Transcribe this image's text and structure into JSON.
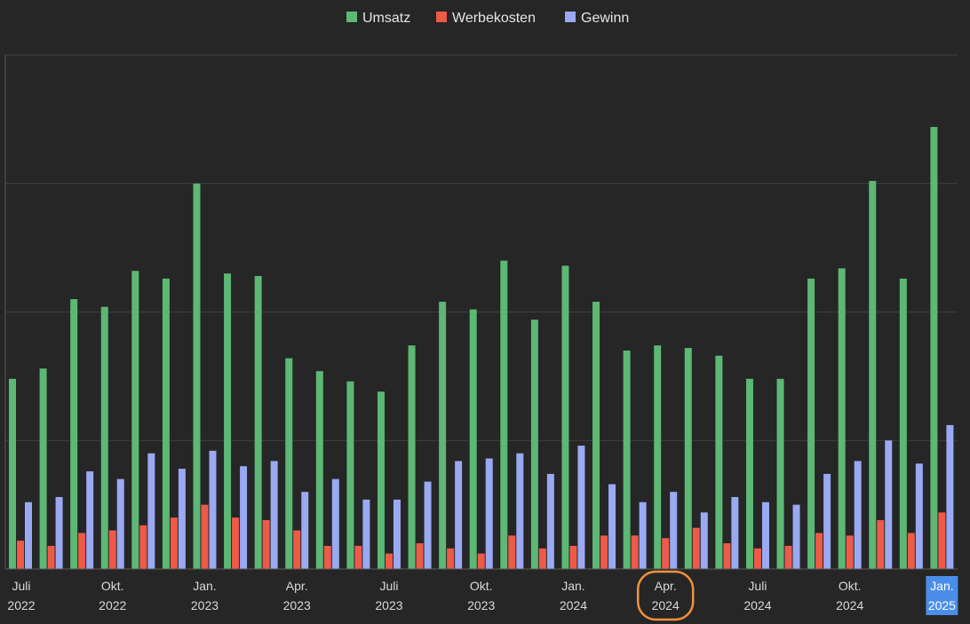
{
  "chart_data": {
    "type": "bar",
    "title": "",
    "xlabel": "",
    "ylabel": "",
    "ylim": [
      0,
      200
    ],
    "grid": true,
    "legend_position": "top-center",
    "categories": [
      "2022-07",
      "2022-08",
      "2022-09",
      "2022-10",
      "2022-11",
      "2022-12",
      "2023-01",
      "2023-02",
      "2023-03",
      "2023-04",
      "2023-05",
      "2023-06",
      "2023-07",
      "2023-08",
      "2023-09",
      "2023-10",
      "2023-11",
      "2023-12",
      "2024-01",
      "2024-02",
      "2024-03",
      "2024-04",
      "2024-05",
      "2024-06",
      "2024-07",
      "2024-08",
      "2024-09",
      "2024-10",
      "2024-11",
      "2024-12",
      "2025-01"
    ],
    "series": [
      {
        "name": "Umsatz",
        "color": "#5cb874",
        "values": [
          74,
          78,
          105,
          102,
          116,
          113,
          150,
          115,
          114,
          82,
          77,
          73,
          69,
          87,
          104,
          101,
          120,
          97,
          118,
          104,
          85,
          87,
          86,
          83,
          74,
          74,
          113,
          117,
          151,
          113,
          172
        ]
      },
      {
        "name": "Werbekosten",
        "color": "#ee5a48",
        "values": [
          11,
          9,
          14,
          15,
          17,
          20,
          25,
          20,
          19,
          15,
          9,
          9,
          6,
          10,
          8,
          6,
          13,
          8,
          9,
          13,
          13,
          12,
          16,
          10,
          8,
          9,
          14,
          13,
          19,
          14,
          22
        ]
      },
      {
        "name": "Gewinn",
        "color": "#9aa9f2",
        "values": [
          26,
          28,
          38,
          35,
          45,
          39,
          46,
          40,
          42,
          30,
          35,
          27,
          27,
          34,
          42,
          43,
          45,
          37,
          48,
          33,
          26,
          30,
          22,
          28,
          26,
          25,
          37,
          42,
          50,
          41,
          56
        ]
      }
    ],
    "tick_labels": [
      {
        "index": 0,
        "line1": "Juli",
        "line2": "2022"
      },
      {
        "index": 3,
        "line1": "Okt.",
        "line2": "2022"
      },
      {
        "index": 6,
        "line1": "Jan.",
        "line2": "2023"
      },
      {
        "index": 9,
        "line1": "Apr.",
        "line2": "2023"
      },
      {
        "index": 12,
        "line1": "Juli",
        "line2": "2023"
      },
      {
        "index": 15,
        "line1": "Okt.",
        "line2": "2023"
      },
      {
        "index": 18,
        "line1": "Jan.",
        "line2": "2024"
      },
      {
        "index": 21,
        "line1": "Apr.",
        "line2": "2024",
        "highlight": "circled"
      },
      {
        "index": 24,
        "line1": "Juli",
        "line2": "2024"
      },
      {
        "index": 27,
        "line1": "Okt.",
        "line2": "2024"
      },
      {
        "index": 30,
        "line1": "Jan.",
        "line2": "2025",
        "highlight": "selected"
      }
    ],
    "gridline_values": [
      0,
      50,
      100,
      150,
      200
    ]
  },
  "colors": {
    "background": "#262626",
    "grid": "#414141",
    "axis": "#5a5a5a",
    "tick_text": "#d9d9d9",
    "selection_fill": "#4a8eea",
    "circle_stroke": "#f2913d"
  }
}
